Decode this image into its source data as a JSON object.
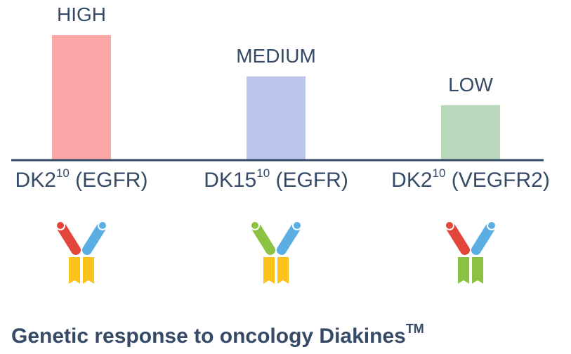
{
  "chart_data": {
    "type": "bar",
    "categories": [
      {
        "base": "DK2",
        "sup": "10",
        "target": "(EGFR)"
      },
      {
        "base": "DK15",
        "sup": "10",
        "target": "(EGFR)"
      },
      {
        "base": "DK2",
        "sup": "10",
        "target": "(VEGFR2)"
      }
    ],
    "values": [
      100,
      67,
      44
    ],
    "bar_labels": [
      "HIGH",
      "MEDIUM",
      "LOW"
    ],
    "bar_colors": [
      "#fca7a8",
      "#bac7ea",
      "#b9d8bb"
    ],
    "ylim": [
      0,
      100
    ],
    "axis_color": "#354a66",
    "grid": false
  },
  "icons": [
    {
      "name": "antibody-icon",
      "left_arm": "#e2463a",
      "right_arm": "#5aaee3",
      "stem": "#fbc21a"
    },
    {
      "name": "antibody-icon",
      "left_arm": "#8cc241",
      "right_arm": "#5aaee3",
      "stem": "#fbc21a"
    },
    {
      "name": "antibody-icon",
      "left_arm": "#e2463a",
      "right_arm": "#5aaee3",
      "stem": "#8cc241"
    }
  ],
  "footer": {
    "text": "Genetic response to oncology Diakines",
    "sup": "TM"
  }
}
